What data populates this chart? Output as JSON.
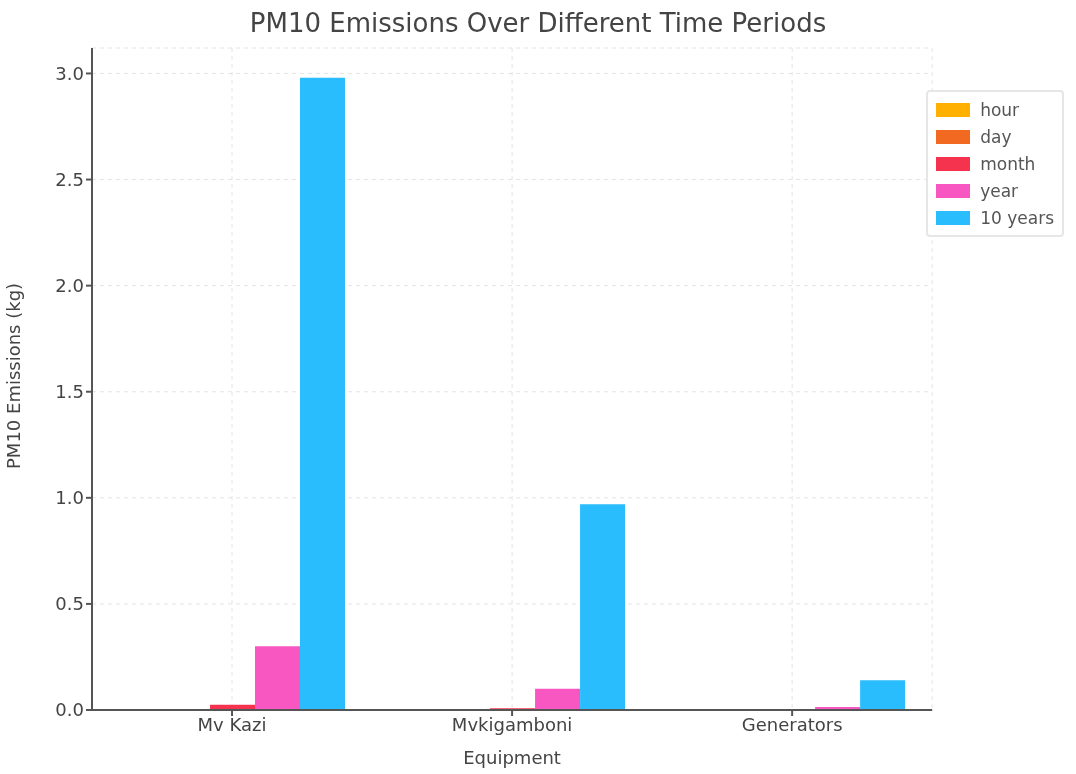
{
  "chart_data": {
    "type": "bar",
    "title": "PM10 Emissions Over Different Time Periods",
    "xlabel": "Equipment",
    "ylabel": "PM10 Emissions (kg)",
    "categories": [
      "Mv Kazi",
      "Mvkigamboni",
      "Generators"
    ],
    "series": [
      {
        "name": "hour",
        "color": "#ffb000",
        "values": [
          0,
          0,
          0
        ]
      },
      {
        "name": "day",
        "color": "#f26a22",
        "values": [
          null,
          0,
          0
        ]
      },
      {
        "name": "month",
        "color": "#f5334f",
        "values": [
          0.025,
          0.008,
          null
        ]
      },
      {
        "name": "year",
        "color": "#f857c1",
        "values": [
          0.3,
          0.1,
          0.014
        ]
      },
      {
        "name": "10 years",
        "color": "#29bdfd",
        "values": [
          2.98,
          0.97,
          0.14
        ]
      }
    ],
    "ylim": [
      0,
      3.12
    ],
    "yticks": [
      {
        "value": 0,
        "label": "0.0"
      },
      {
        "value": 0.5,
        "label": "0.5"
      },
      {
        "value": 1,
        "label": "1.0"
      },
      {
        "value": 1.5,
        "label": "1.5"
      },
      {
        "value": 2,
        "label": "2.0"
      },
      {
        "value": 2.5,
        "label": "2.5"
      },
      {
        "value": 3,
        "label": "3.0"
      }
    ],
    "grid": true,
    "legend": "top right"
  }
}
